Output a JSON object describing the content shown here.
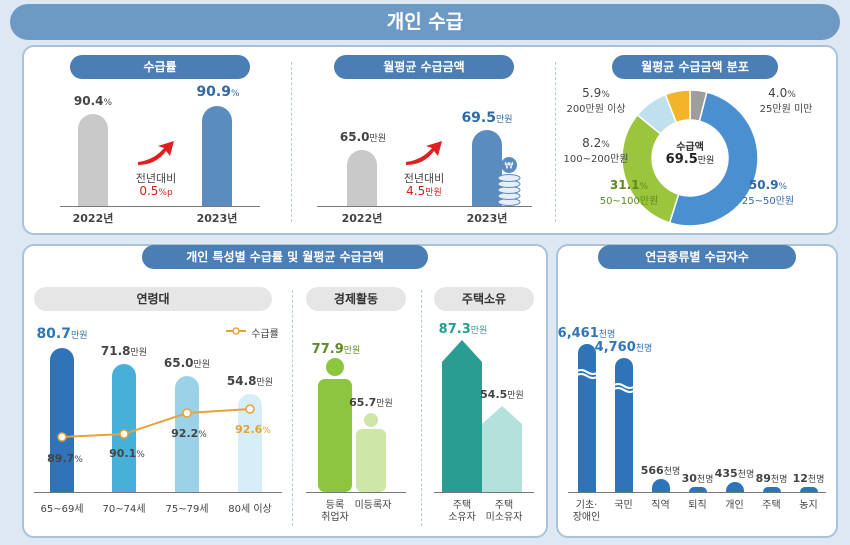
{
  "header": {
    "title": "개인 수급"
  },
  "rate": {
    "title": "수급률",
    "bars": [
      {
        "year": "2022년",
        "value": "90.4",
        "unit": "%"
      },
      {
        "year": "2023년",
        "value": "90.9",
        "unit": "%"
      }
    ],
    "change_label": "전년대비",
    "change_value": "0.5",
    "change_unit": "%p"
  },
  "amount": {
    "title": "월평균 수급금액",
    "bars": [
      {
        "year": "2022년",
        "value": "65.0",
        "unit": "만원"
      },
      {
        "year": "2023년",
        "value": "69.5",
        "unit": "만원"
      }
    ],
    "change_label": "전년대비",
    "change_value": "4.5",
    "change_unit": "만원"
  },
  "distribution": {
    "title": "월평균 수급금액 분포",
    "center_label": "수급액",
    "center_value": "69.5",
    "center_unit": "만원",
    "slices": [
      {
        "label": "25만원 미만",
        "pct": "4.0",
        "value": 4.0,
        "color": "#9e9e9e"
      },
      {
        "label": "25~50만원",
        "pct": "50.9",
        "value": 50.9,
        "color": "#4a8fd0"
      },
      {
        "label": "50~100만원",
        "pct": "31.1",
        "value": 31.1,
        "color": "#9bc53d"
      },
      {
        "label": "100~200만원",
        "pct": "8.2",
        "value": 8.2,
        "color": "#bfe1ee"
      },
      {
        "label": "200만원 이상",
        "pct": "5.9",
        "value": 5.9,
        "color": "#f2b529"
      }
    ],
    "pct_unit": "%"
  },
  "characteristics": {
    "title": "개인 특성별 수급률 및 월평균 수급금액",
    "age": {
      "title": "연령대",
      "legend": "수급률",
      "groups": [
        {
          "label": "65~69세",
          "amount": "80.7",
          "rate": "89.7",
          "amount_value": 80.7,
          "rate_value": 89.7
        },
        {
          "label": "70~74세",
          "amount": "71.8",
          "rate": "90.1",
          "amount_value": 71.8,
          "rate_value": 90.1
        },
        {
          "label": "75~79세",
          "amount": "65.0",
          "rate": "92.2",
          "amount_value": 65.0,
          "rate_value": 92.2
        },
        {
          "label": "80세 이상",
          "amount": "54.8",
          "rate": "92.6",
          "amount_value": 54.8,
          "rate_value": 92.6
        }
      ],
      "amount_unit": "만원",
      "rate_unit": "%"
    },
    "economic": {
      "title": "경제활동",
      "groups": [
        {
          "label1": "등록",
          "label2": "취업자",
          "amount": "77.9",
          "amount_value": 77.9
        },
        {
          "label1": "미등록자",
          "label2": "",
          "amount": "65.7",
          "amount_value": 65.7
        }
      ],
      "unit": "만원"
    },
    "housing": {
      "title": "주택소유",
      "groups": [
        {
          "label1": "주택",
          "label2": "소유자",
          "amount": "87.3",
          "amount_value": 87.3
        },
        {
          "label1": "주택",
          "label2": "미소유자",
          "amount": "54.5",
          "amount_value": 54.5
        }
      ],
      "unit": "만원"
    }
  },
  "pension_types": {
    "title": "연금종류별 수급자수",
    "unit": "천명",
    "items": [
      {
        "label1": "기초·",
        "label2": "장애인",
        "value": "6,461",
        "num": 6461
      },
      {
        "label1": "국민",
        "label2": "",
        "value": "4,760",
        "num": 4760
      },
      {
        "label1": "직역",
        "label2": "",
        "value": "566",
        "num": 566
      },
      {
        "label1": "퇴직",
        "label2": "",
        "value": "30",
        "num": 30
      },
      {
        "label1": "개인",
        "label2": "",
        "value": "435",
        "num": 435
      },
      {
        "label1": "주택",
        "label2": "",
        "value": "89",
        "num": 89
      },
      {
        "label1": "농지",
        "label2": "",
        "value": "12",
        "num": 12
      }
    ]
  },
  "chart_data": [
    {
      "type": "bar",
      "title": "수급률",
      "categories": [
        "2022년",
        "2023년"
      ],
      "values": [
        90.4,
        90.9
      ]
    },
    {
      "type": "bar",
      "title": "월평균 수급금액",
      "categories": [
        "2022년",
        "2023년"
      ],
      "values": [
        65.0,
        69.5
      ]
    },
    {
      "type": "pie",
      "title": "월평균 수급금액 분포",
      "categories": [
        "25만원 미만",
        "25~50만원",
        "50~100만원",
        "100~200만원",
        "200만원 이상"
      ],
      "values": [
        4.0,
        50.9,
        31.1,
        8.2,
        5.9
      ]
    },
    {
      "type": "bar",
      "title": "연령대",
      "categories": [
        "65~69세",
        "70~74세",
        "75~79세",
        "80세 이상"
      ],
      "series": [
        {
          "name": "",
          "values": [
            80.7,
            71.8,
            65.0,
            54.8
          ]
        },
        {
          "name": "수급률",
          "values": [
            89.7,
            90.1,
            92.2,
            92.6
          ]
        }
      ]
    },
    {
      "type": "bar",
      "title": "경제활동",
      "categories": [
        "등록 취업자",
        "미등록자"
      ],
      "values": [
        77.9,
        65.7
      ]
    },
    {
      "type": "bar",
      "title": "주택소유",
      "categories": [
        "주택 소유자",
        "주택 미소유자"
      ],
      "values": [
        87.3,
        54.5
      ]
    },
    {
      "type": "bar",
      "title": "연금종류별 수급자수",
      "categories": [
        "기초·장애인",
        "국민",
        "직역",
        "퇴직",
        "개인",
        "주택",
        "농지"
      ],
      "values": [
        6461,
        4760,
        566,
        30,
        435,
        89,
        12
      ]
    }
  ]
}
